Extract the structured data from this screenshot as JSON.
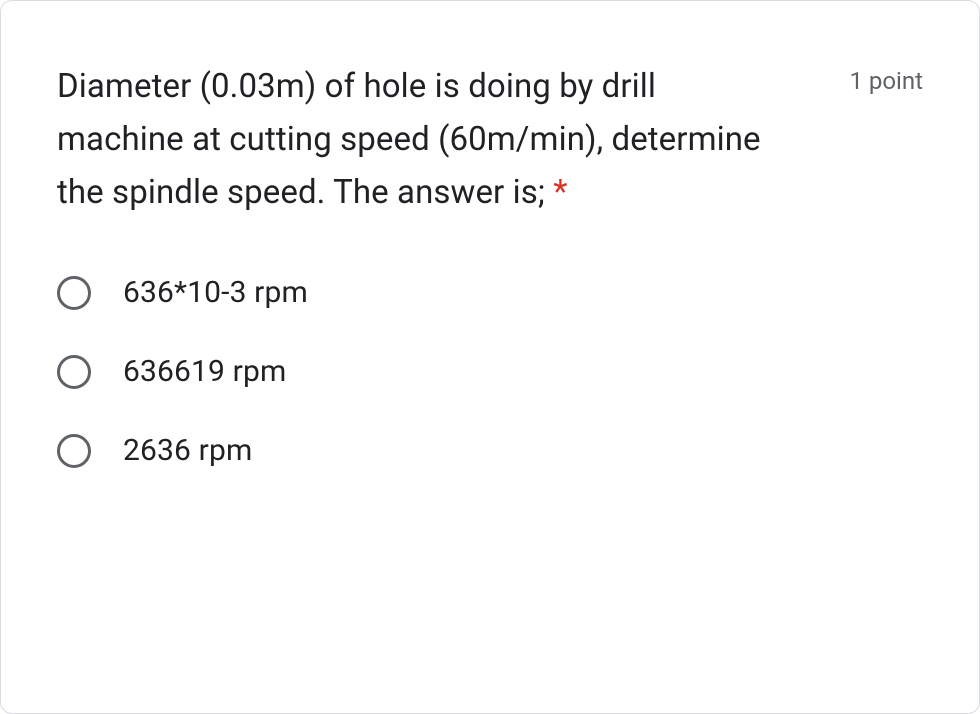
{
  "question": {
    "text": "Diameter (0.03m) of hole is doing by drill machine at cutting speed (60m/min), determine the spindle speed. The answer is;",
    "required_marker": "*",
    "points_label": "1 point"
  },
  "options": [
    {
      "label": "636*10-3 rpm",
      "selected": false
    },
    {
      "label": "636619 rpm",
      "selected": false
    },
    {
      "label": "2636 rpm",
      "selected": false
    }
  ],
  "colors": {
    "text_primary": "#202124",
    "text_secondary": "#5f6368",
    "required": "#d93025",
    "border": "#dadce0",
    "radio_border": "#5f6368",
    "background": "#ffffff"
  },
  "typography": {
    "question_fontsize": 33,
    "points_fontsize": 24,
    "option_fontsize": 30,
    "line_height": 1.6
  },
  "layout": {
    "card_radius": 12,
    "radio_size": 34,
    "radio_border_width": 3
  }
}
